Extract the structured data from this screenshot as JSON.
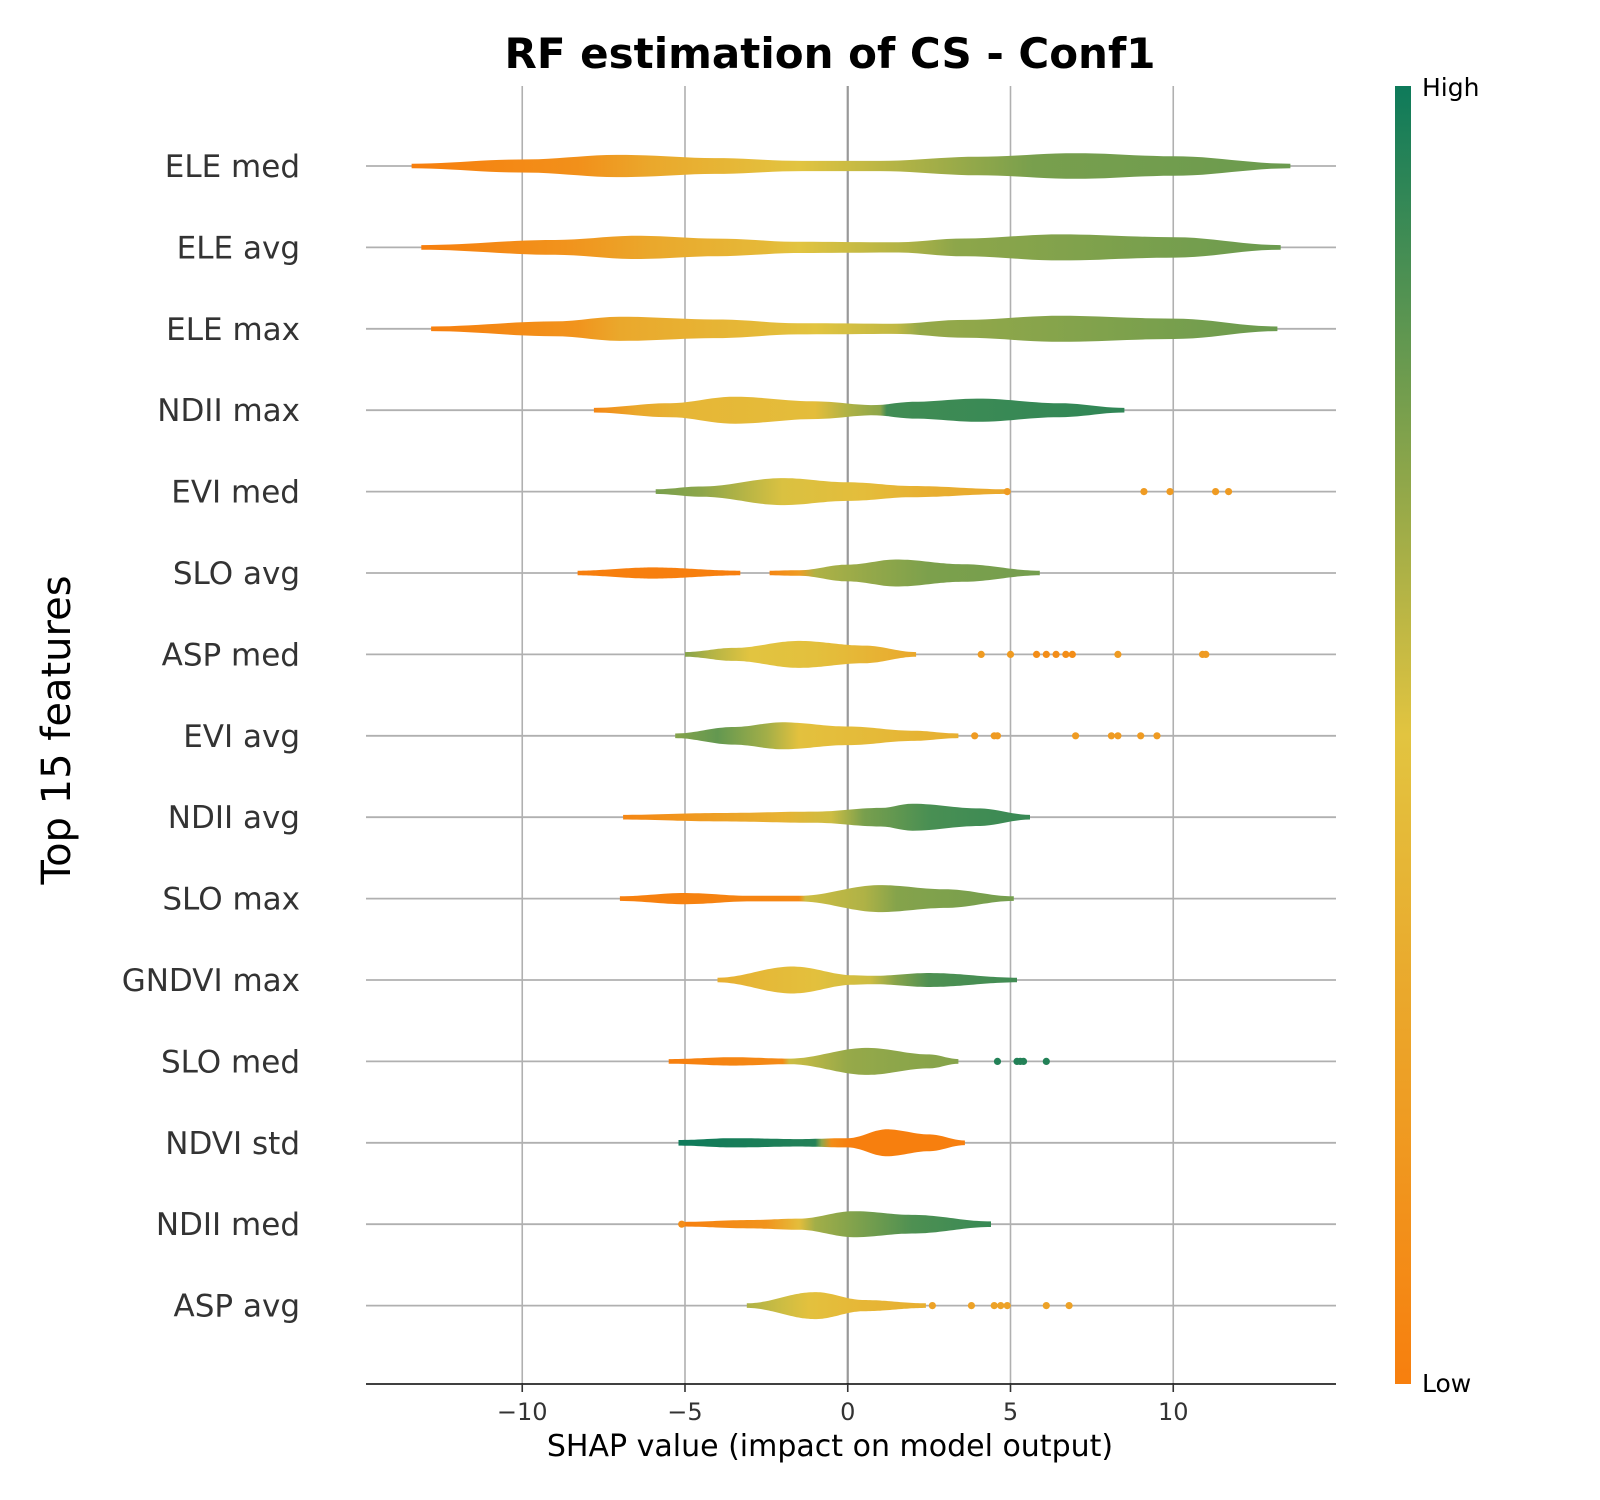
{
  "chart_data": {
    "type": "violin",
    "title": "RF estimation of CS - Conf1",
    "xlabel": "SHAP value (impact on model output)",
    "ylabel": "Top 15 features",
    "xlim": [
      -14.8,
      15
    ],
    "xticks": [
      {
        "value": -10,
        "label": "−10"
      },
      {
        "value": -5,
        "label": "−5"
      },
      {
        "value": 0,
        "label": "0"
      },
      {
        "value": 5,
        "label": "5"
      },
      {
        "value": 10,
        "label": "10"
      }
    ],
    "grid": true,
    "colorbar": {
      "high_label": "High",
      "low_label": "Low",
      "high_color": "#0e7a5a",
      "mid_color": "#e2c440",
      "low_color": "#f77f0e"
    },
    "features": [
      {
        "name": "ELE med",
        "range": [
          -13.4,
          13.6
        ],
        "shape": [
          [
            -13.4,
            0.1
          ],
          [
            -10,
            0.28
          ],
          [
            -7,
            0.48
          ],
          [
            -4,
            0.34
          ],
          [
            -1.5,
            0.22
          ],
          [
            1,
            0.22
          ],
          [
            4,
            0.4
          ],
          [
            7,
            0.55
          ],
          [
            10,
            0.42
          ],
          [
            13.6,
            0.1
          ]
        ],
        "color_stops": [
          [
            -13.4,
            0.0
          ],
          [
            -8.3,
            0.12
          ],
          [
            -6,
            0.3
          ],
          [
            -3.7,
            0.4
          ],
          [
            -1.5,
            0.5
          ],
          [
            1.8,
            0.62
          ],
          [
            5.7,
            0.75
          ],
          [
            13.6,
            0.78
          ]
        ],
        "outliers": []
      },
      {
        "name": "ELE avg",
        "range": [
          -13.1,
          13.3
        ],
        "shape": [
          [
            -13.1,
            0.1
          ],
          [
            -9,
            0.32
          ],
          [
            -6.5,
            0.5
          ],
          [
            -4,
            0.38
          ],
          [
            -1.5,
            0.24
          ],
          [
            1.5,
            0.22
          ],
          [
            3.5,
            0.38
          ],
          [
            6.5,
            0.56
          ],
          [
            10,
            0.44
          ],
          [
            13.3,
            0.1
          ]
        ],
        "color_stops": [
          [
            -13.1,
            0.0
          ],
          [
            -8.5,
            0.15
          ],
          [
            -6,
            0.3
          ],
          [
            -2.5,
            0.42
          ],
          [
            -1.5,
            0.5
          ],
          [
            1.8,
            0.62
          ],
          [
            3.3,
            0.7
          ],
          [
            13.3,
            0.78
          ]
        ],
        "outliers": []
      },
      {
        "name": "ELE max",
        "range": [
          -12.8,
          13.2
        ],
        "shape": [
          [
            -12.8,
            0.1
          ],
          [
            -9,
            0.32
          ],
          [
            -7,
            0.52
          ],
          [
            -4,
            0.4
          ],
          [
            -1.5,
            0.24
          ],
          [
            1.5,
            0.22
          ],
          [
            3.5,
            0.38
          ],
          [
            6.5,
            0.56
          ],
          [
            10,
            0.44
          ],
          [
            13.2,
            0.1
          ]
        ],
        "color_stops": [
          [
            -12.8,
            0.0
          ],
          [
            -8.3,
            0.15
          ],
          [
            -7,
            0.3
          ],
          [
            -2.8,
            0.42
          ],
          [
            -1,
            0.5
          ],
          [
            1.5,
            0.58
          ],
          [
            2.2,
            0.68
          ],
          [
            13.2,
            0.78
          ]
        ],
        "outliers": []
      },
      {
        "name": "NDII max",
        "range": [
          -7.8,
          8.5
        ],
        "shape": [
          [
            -7.8,
            0.1
          ],
          [
            -5.5,
            0.3
          ],
          [
            -3.5,
            0.58
          ],
          [
            -1,
            0.38
          ],
          [
            0.8,
            0.22
          ],
          [
            2,
            0.36
          ],
          [
            4,
            0.5
          ],
          [
            6.5,
            0.3
          ],
          [
            8.5,
            0.1
          ]
        ],
        "color_stops": [
          [
            -7.8,
            0.05
          ],
          [
            -6.5,
            0.3
          ],
          [
            -5,
            0.4
          ],
          [
            -1,
            0.45
          ],
          [
            0,
            0.62
          ],
          [
            1,
            0.7
          ],
          [
            1.2,
            0.88
          ],
          [
            8.5,
            0.92
          ]
        ],
        "outliers": []
      },
      {
        "name": "EVI med",
        "range": [
          -5.9,
          4.9
        ],
        "shape": [
          [
            -5.9,
            0.1
          ],
          [
            -4.5,
            0.22
          ],
          [
            -2,
            0.58
          ],
          [
            0,
            0.4
          ],
          [
            2,
            0.24
          ],
          [
            4.9,
            0.1
          ]
        ],
        "color_stops": [
          [
            -5.9,
            0.75
          ],
          [
            -4.5,
            0.7
          ],
          [
            -2,
            0.52
          ],
          [
            0.5,
            0.45
          ],
          [
            2.5,
            0.35
          ],
          [
            4.9,
            0.3
          ]
        ],
        "outliers": [
          {
            "x": 4.9,
            "v": 0.2
          },
          {
            "x": 9.1,
            "v": 0.2
          },
          {
            "x": 9.9,
            "v": 0.2
          },
          {
            "x": 11.3,
            "v": 0.2
          },
          {
            "x": 11.7,
            "v": 0.2
          }
        ]
      },
      {
        "name": "SLO avg",
        "range": [
          -8.3,
          5.9
        ],
        "segments": [
          [
            -8.3,
            -3.3
          ],
          [
            -2.4,
            5.9
          ]
        ],
        "shape": [
          [
            -8.3,
            0.1
          ],
          [
            -6,
            0.24
          ],
          [
            -3.3,
            0.1
          ],
          [
            -2.4,
            0.1
          ],
          [
            -1.5,
            0.12
          ],
          [
            0,
            0.36
          ],
          [
            1.5,
            0.58
          ],
          [
            3.5,
            0.38
          ],
          [
            5.9,
            0.1
          ]
        ],
        "color_stops": [
          [
            -8.3,
            0.0
          ],
          [
            -3.3,
            0.0
          ],
          [
            -2.4,
            0.05
          ],
          [
            -1.5,
            0.2
          ],
          [
            -1,
            0.62
          ],
          [
            0.5,
            0.68
          ],
          [
            2.5,
            0.74
          ],
          [
            5.9,
            0.76
          ]
        ],
        "outliers": []
      },
      {
        "name": "ASP med",
        "range": [
          -5.0,
          2.1
        ],
        "shape": [
          [
            -5.0,
            0.1
          ],
          [
            -3.5,
            0.28
          ],
          [
            -1.5,
            0.58
          ],
          [
            0.5,
            0.38
          ],
          [
            2.1,
            0.1
          ]
        ],
        "color_stops": [
          [
            -5.0,
            0.72
          ],
          [
            -4.3,
            0.62
          ],
          [
            -3,
            0.5
          ],
          [
            -1,
            0.47
          ],
          [
            0.8,
            0.38
          ],
          [
            2.1,
            0.3
          ]
        ],
        "outliers": [
          {
            "x": 4.1,
            "v": 0.2
          },
          {
            "x": 5.0,
            "v": 0.2
          },
          {
            "x": 5.8,
            "v": 0.1
          },
          {
            "x": 6.1,
            "v": 0.1
          },
          {
            "x": 6.4,
            "v": 0.1
          },
          {
            "x": 6.7,
            "v": 0.1
          },
          {
            "x": 6.9,
            "v": 0.1
          },
          {
            "x": 8.3,
            "v": 0.2
          },
          {
            "x": 10.9,
            "v": 0.2
          },
          {
            "x": 11.0,
            "v": 0.2
          }
        ]
      },
      {
        "name": "EVI avg",
        "range": [
          -5.3,
          3.4
        ],
        "shape": [
          [
            -5.3,
            0.1
          ],
          [
            -3.5,
            0.38
          ],
          [
            -2,
            0.58
          ],
          [
            0,
            0.4
          ],
          [
            2,
            0.22
          ],
          [
            3.4,
            0.1
          ]
        ],
        "color_stops": [
          [
            -5.3,
            0.72
          ],
          [
            -4,
            0.8
          ],
          [
            -2.5,
            0.65
          ],
          [
            -1.5,
            0.48
          ],
          [
            1,
            0.42
          ],
          [
            3.4,
            0.35
          ]
        ],
        "outliers": [
          {
            "x": 3.9,
            "v": 0.2
          },
          {
            "x": 4.5,
            "v": 0.2
          },
          {
            "x": 4.6,
            "v": 0.2
          },
          {
            "x": 7.0,
            "v": 0.2
          },
          {
            "x": 8.1,
            "v": 0.2
          },
          {
            "x": 8.3,
            "v": 0.2
          },
          {
            "x": 9.0,
            "v": 0.2
          },
          {
            "x": 9.5,
            "v": 0.2
          }
        ]
      },
      {
        "name": "NDII avg",
        "range": [
          -6.9,
          5.6
        ],
        "shape": [
          [
            -6.9,
            0.1
          ],
          [
            -4,
            0.18
          ],
          [
            -1,
            0.24
          ],
          [
            1,
            0.4
          ],
          [
            2,
            0.58
          ],
          [
            4,
            0.38
          ],
          [
            5.6,
            0.1
          ]
        ],
        "color_stops": [
          [
            -6.9,
            0.05
          ],
          [
            -4.5,
            0.2
          ],
          [
            -2,
            0.38
          ],
          [
            -0.5,
            0.55
          ],
          [
            0.5,
            0.75
          ],
          [
            2.5,
            0.86
          ],
          [
            5.6,
            0.9
          ]
        ],
        "outliers": []
      },
      {
        "name": "SLO max",
        "range": [
          -7.0,
          5.1
        ],
        "shape": [
          [
            -7.0,
            0.1
          ],
          [
            -5,
            0.24
          ],
          [
            -3,
            0.12
          ],
          [
            -1.5,
            0.12
          ],
          [
            1,
            0.58
          ],
          [
            3,
            0.4
          ],
          [
            5.1,
            0.1
          ]
        ],
        "color_stops": [
          [
            -7.0,
            0.0
          ],
          [
            -1.5,
            0.05
          ],
          [
            -1.3,
            0.55
          ],
          [
            0.5,
            0.62
          ],
          [
            1.5,
            0.72
          ],
          [
            5.1,
            0.76
          ]
        ],
        "outliers": []
      },
      {
        "name": "GNDVI max",
        "range": [
          -4.0,
          5.2
        ],
        "shape": [
          [
            -4.0,
            0.1
          ],
          [
            -1.7,
            0.58
          ],
          [
            0.2,
            0.2
          ],
          [
            0.8,
            0.18
          ],
          [
            2.5,
            0.3
          ],
          [
            5.2,
            0.1
          ]
        ],
        "color_stops": [
          [
            -4.0,
            0.35
          ],
          [
            -2.5,
            0.42
          ],
          [
            -1,
            0.47
          ],
          [
            0.7,
            0.55
          ],
          [
            1.5,
            0.72
          ],
          [
            2.5,
            0.85
          ],
          [
            5.2,
            0.88
          ]
        ],
        "outliers": []
      },
      {
        "name": "SLO med",
        "range": [
          -5.5,
          3.4
        ],
        "shape": [
          [
            -5.5,
            0.1
          ],
          [
            -3.5,
            0.18
          ],
          [
            -1.8,
            0.12
          ],
          [
            0.6,
            0.58
          ],
          [
            2.5,
            0.3
          ],
          [
            3.4,
            0.1
          ]
        ],
        "color_stops": [
          [
            -5.5,
            0.0
          ],
          [
            -2,
            0.08
          ],
          [
            -1.8,
            0.55
          ],
          [
            0,
            0.68
          ],
          [
            1.5,
            0.7
          ],
          [
            3.4,
            0.72
          ]
        ],
        "outliers": [
          {
            "x": 4.6,
            "v": 0.95
          },
          {
            "x": 5.2,
            "v": 0.95
          },
          {
            "x": 5.3,
            "v": 0.95
          },
          {
            "x": 5.4,
            "v": 0.95
          },
          {
            "x": 6.1,
            "v": 0.95
          }
        ]
      },
      {
        "name": "NDVI std",
        "range": [
          -5.2,
          3.6
        ],
        "shape": [
          [
            -5.2,
            0.12
          ],
          [
            -3.5,
            0.2
          ],
          [
            -1.5,
            0.16
          ],
          [
            0,
            0.2
          ],
          [
            1.2,
            0.58
          ],
          [
            2.5,
            0.36
          ],
          [
            3.6,
            0.1
          ]
        ],
        "color_stops": [
          [
            -5.2,
            1.0
          ],
          [
            -1.0,
            0.95
          ],
          [
            -0.8,
            0.7
          ],
          [
            -0.5,
            0.1
          ],
          [
            0,
            0.0
          ],
          [
            3.6,
            0.0
          ]
        ],
        "outliers": []
      },
      {
        "name": "NDII med",
        "range": [
          -5.1,
          4.4
        ],
        "shape": [
          [
            -5.1,
            0.1
          ],
          [
            -3,
            0.18
          ],
          [
            -1.5,
            0.24
          ],
          [
            0.2,
            0.56
          ],
          [
            2,
            0.4
          ],
          [
            4.4,
            0.12
          ]
        ],
        "color_stops": [
          [
            -5.1,
            0.0
          ],
          [
            -2.5,
            0.15
          ],
          [
            -1.5,
            0.45
          ],
          [
            -1,
            0.65
          ],
          [
            0.5,
            0.75
          ],
          [
            2,
            0.85
          ],
          [
            4.4,
            0.9
          ]
        ],
        "outliers": [
          {
            "x": -5.1,
            "v": 0.1
          }
        ]
      },
      {
        "name": "ASP avg",
        "range": [
          -3.1,
          2.4
        ],
        "shape": [
          [
            -3.1,
            0.1
          ],
          [
            -1.0,
            0.58
          ],
          [
            0.5,
            0.24
          ],
          [
            2.4,
            0.1
          ]
        ],
        "color_stops": [
          [
            -3.1,
            0.62
          ],
          [
            -2,
            0.55
          ],
          [
            -1.2,
            0.48
          ],
          [
            0.5,
            0.4
          ],
          [
            2.4,
            0.35
          ]
        ],
        "outliers": [
          {
            "x": 2.6,
            "v": 0.25
          },
          {
            "x": 3.8,
            "v": 0.25
          },
          {
            "x": 4.5,
            "v": 0.25
          },
          {
            "x": 4.7,
            "v": 0.25
          },
          {
            "x": 4.9,
            "v": 0.25
          },
          {
            "x": 6.1,
            "v": 0.25
          },
          {
            "x": 6.8,
            "v": 0.25
          }
        ]
      }
    ]
  }
}
